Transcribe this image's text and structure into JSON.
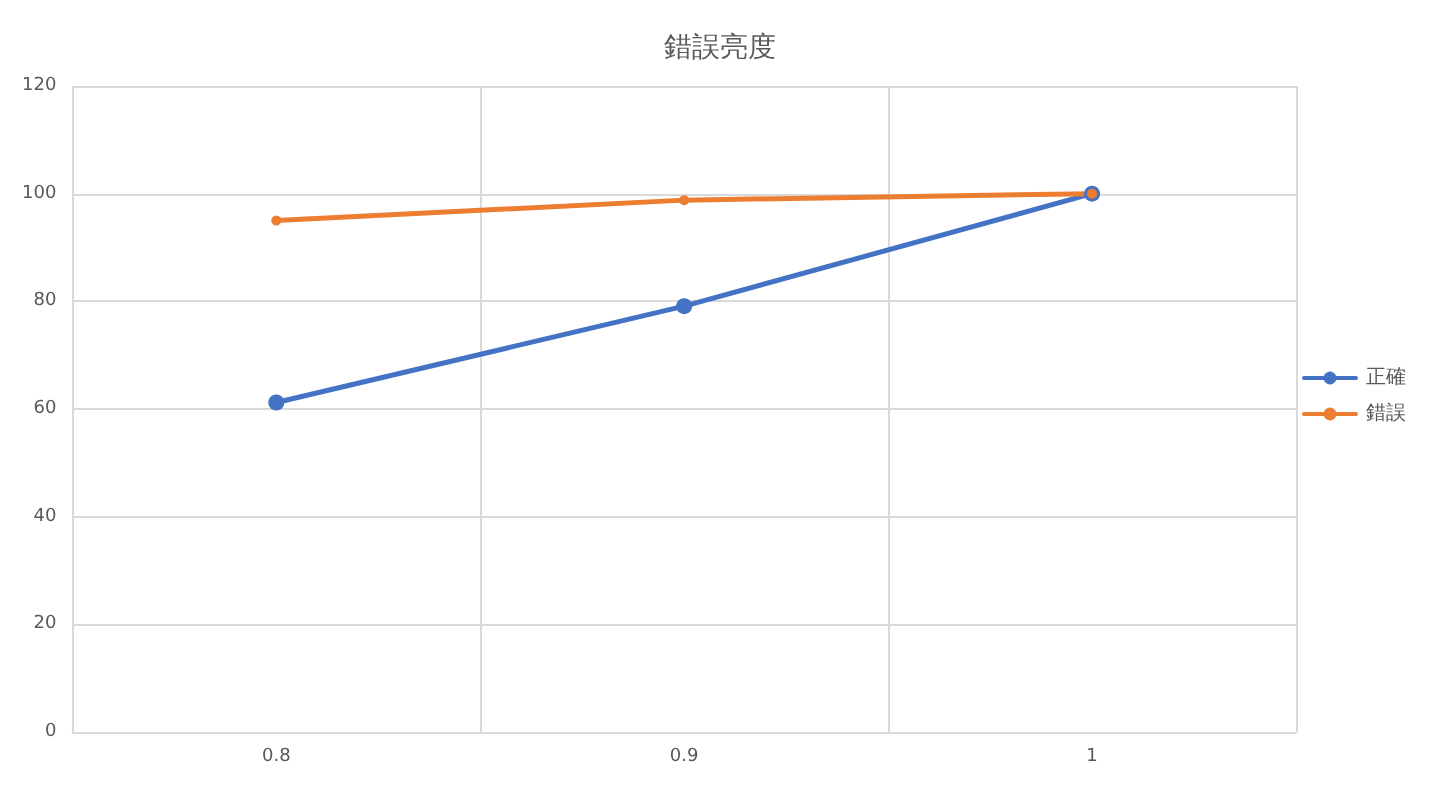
{
  "chart_data": {
    "type": "line",
    "title": "錯誤亮度",
    "categories": [
      "0.8",
      "0.9",
      "1"
    ],
    "series": [
      {
        "name": "正確",
        "color": "#4472c4",
        "values": [
          61.2,
          79.1,
          100
        ]
      },
      {
        "name": "錯誤",
        "color": "#ed7d31",
        "values": [
          95,
          98.8,
          100
        ]
      }
    ],
    "ylim": [
      0,
      120
    ],
    "yticks": [
      0,
      20,
      40,
      60,
      80,
      100,
      120
    ],
    "grid": true,
    "legend": "right",
    "marker": "circle",
    "line_style": "solid"
  }
}
